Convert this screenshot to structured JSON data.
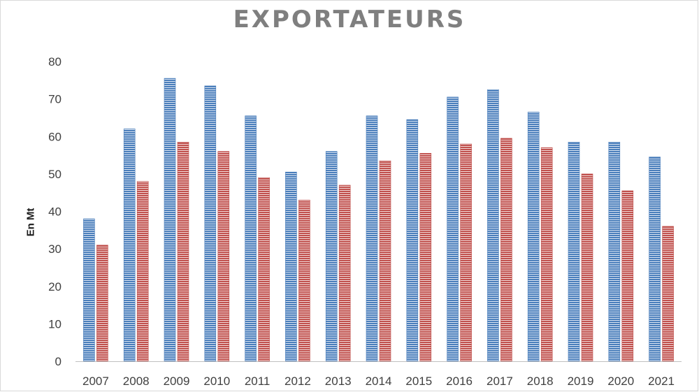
{
  "chart_data": {
    "type": "bar",
    "title": "EXPORTATEURS",
    "xlabel": "",
    "ylabel": "En Mt",
    "ylim": [
      0,
      80
    ],
    "yticks": [
      0,
      10,
      20,
      30,
      40,
      50,
      60,
      70,
      80
    ],
    "grid": false,
    "legend": "none",
    "categories": [
      "2007",
      "2008",
      "2009",
      "2010",
      "2011",
      "2012",
      "2013",
      "2014",
      "2015",
      "2016",
      "2017",
      "2018",
      "2019",
      "2020",
      "2021"
    ],
    "series": [
      {
        "color": "#4a7ebb",
        "values": [
          38,
          62,
          75.5,
          73.5,
          65.5,
          50.5,
          56,
          65.5,
          64.5,
          70.5,
          72.5,
          66.5,
          58.5,
          58.5,
          54.5
        ]
      },
      {
        "color": "#c0504d",
        "values": [
          31,
          48,
          58.5,
          56,
          49,
          43,
          47,
          53.5,
          55.5,
          58,
          59.5,
          57,
          50,
          45.5,
          36
        ]
      }
    ]
  }
}
